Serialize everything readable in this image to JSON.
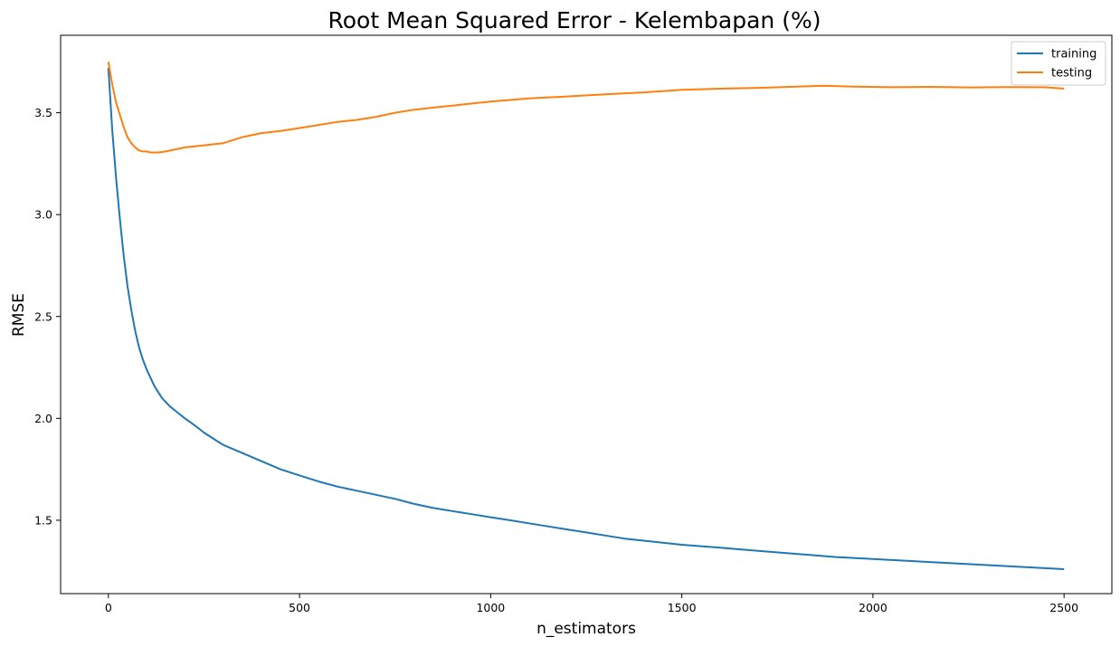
{
  "chart_data": {
    "type": "line",
    "title": "Root Mean Squared Error - Kelembapan (%)",
    "xlabel": "n_estimators",
    "ylabel": "RMSE",
    "xlim": [
      -125,
      2625
    ],
    "ylim": [
      1.14,
      3.88
    ],
    "xticks": [
      0,
      500,
      1000,
      1500,
      2000,
      2500
    ],
    "yticks": [
      1.5,
      2.0,
      2.5,
      3.0,
      3.5
    ],
    "xtick_labels": [
      "0",
      "500",
      "1000",
      "1500",
      "2000",
      "2500"
    ],
    "ytick_labels": [
      "1.5",
      "2.0",
      "2.5",
      "3.0",
      "3.5"
    ],
    "grid": false,
    "legend_position": "top-right",
    "series": [
      {
        "name": "training",
        "color": "#1f77b4",
        "x": [
          0,
          10,
          20,
          30,
          40,
          50,
          60,
          70,
          80,
          90,
          100,
          120,
          140,
          160,
          180,
          200,
          215,
          230,
          250,
          275,
          300,
          325,
          350,
          375,
          400,
          425,
          450,
          500,
          550,
          600,
          650,
          700,
          750,
          800,
          850,
          900,
          950,
          1000,
          1050,
          1100,
          1150,
          1200,
          1250,
          1300,
          1350,
          1400,
          1450,
          1500,
          1600,
          1700,
          1800,
          1900,
          2000,
          2100,
          2200,
          2300,
          2400,
          2500
        ],
        "y": [
          3.72,
          3.42,
          3.18,
          2.98,
          2.8,
          2.65,
          2.53,
          2.43,
          2.35,
          2.29,
          2.24,
          2.16,
          2.1,
          2.06,
          2.03,
          2.0,
          1.98,
          1.96,
          1.93,
          1.9,
          1.87,
          1.85,
          1.83,
          1.81,
          1.79,
          1.77,
          1.75,
          1.72,
          1.69,
          1.665,
          1.645,
          1.625,
          1.605,
          1.58,
          1.56,
          1.545,
          1.53,
          1.515,
          1.5,
          1.485,
          1.47,
          1.455,
          1.44,
          1.425,
          1.41,
          1.4,
          1.39,
          1.38,
          1.365,
          1.35,
          1.335,
          1.32,
          1.31,
          1.3,
          1.29,
          1.28,
          1.27,
          1.26
        ]
      },
      {
        "name": "testing",
        "color": "#ff7f0e",
        "x": [
          0,
          10,
          20,
          30,
          40,
          50,
          60,
          70,
          80,
          90,
          100,
          110,
          120,
          130,
          140,
          150,
          175,
          200,
          250,
          300,
          350,
          400,
          450,
          500,
          550,
          600,
          650,
          700,
          750,
          800,
          850,
          900,
          950,
          1000,
          1100,
          1200,
          1300,
          1400,
          1500,
          1600,
          1700,
          1800,
          1870,
          1950,
          2050,
          2150,
          2250,
          2350,
          2450,
          2500
        ],
        "y": [
          3.75,
          3.64,
          3.55,
          3.49,
          3.43,
          3.38,
          3.35,
          3.33,
          3.315,
          3.31,
          3.31,
          3.305,
          3.305,
          3.305,
          3.307,
          3.31,
          3.32,
          3.33,
          3.34,
          3.35,
          3.38,
          3.4,
          3.41,
          3.425,
          3.44,
          3.455,
          3.465,
          3.48,
          3.5,
          3.515,
          3.525,
          3.535,
          3.545,
          3.555,
          3.57,
          3.58,
          3.59,
          3.6,
          3.612,
          3.618,
          3.622,
          3.628,
          3.632,
          3.628,
          3.625,
          3.627,
          3.624,
          3.626,
          3.625,
          3.618
        ]
      }
    ]
  }
}
